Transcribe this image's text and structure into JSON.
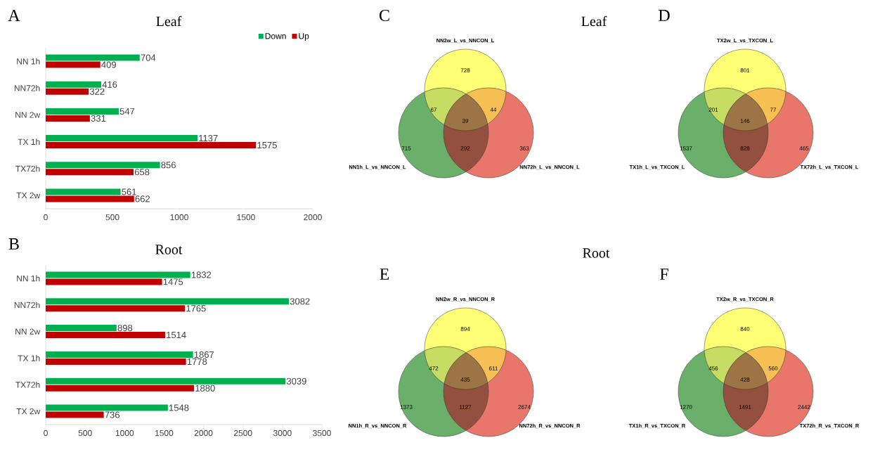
{
  "chart_data": [
    {
      "type": "bar",
      "title": "Leaf",
      "annotations": [
        "A"
      ],
      "orientation": "horizontal",
      "categories": [
        "NN 1h",
        "NN72h",
        "NN 2w",
        "TX  1h",
        "TX72h",
        "TX  2w"
      ],
      "series": [
        {
          "name": "Down",
          "color": "#00b050",
          "values": [
            704,
            416,
            547,
            1137,
            856,
            561
          ]
        },
        {
          "name": "Up",
          "color": "#c00000",
          "values": [
            409,
            322,
            331,
            1575,
            658,
            662
          ]
        }
      ],
      "xlim": [
        0,
        2000
      ],
      "xticks": [
        0,
        500,
        1000,
        1500,
        2000
      ],
      "data_labels": true,
      "legend": "top right"
    },
    {
      "type": "bar",
      "title": "Root",
      "annotations": [
        "B"
      ],
      "orientation": "horizontal",
      "categories": [
        "NN 1h",
        "NN72h",
        "NN 2w",
        "TX 1h",
        "TX72h",
        "TX 2w"
      ],
      "series": [
        {
          "color": "#00b050",
          "values": [
            1832,
            3082,
            898,
            1867,
            3039,
            1548
          ]
        },
        {
          "color": "#c00000",
          "values": [
            1475,
            1765,
            1514,
            1778,
            1880,
            736
          ]
        }
      ],
      "xlim": [
        0,
        3500
      ],
      "xticks": [
        0,
        500,
        1000,
        1500,
        2000,
        2500,
        3000,
        3500
      ],
      "data_labels": true
    },
    {
      "type": "other",
      "title": "Leaf",
      "annotations": [
        "C",
        "NN2w_L_vs_NNCON_L",
        "NN1h_L_vs_NNCON_L",
        "NN72h_L_vs_NNCON_L",
        "728",
        "715",
        "363",
        "67",
        "44",
        "39",
        "292"
      ],
      "colors": [
        "#ffff75",
        "#6ab06a",
        "#e8766a",
        "#c6dc63",
        "#f6c055",
        "#9c7445",
        "#94503e"
      ]
    },
    {
      "type": "other",
      "annotations": [
        "D",
        "TX2w_L_vs_TXCON_L",
        "TX1h_L_vs_TXCON_L",
        "TX72h_L_vs_TXCON_L",
        "801",
        "1537",
        "465",
        "201",
        "77",
        "146",
        "828"
      ],
      "colors": [
        "#ffff75",
        "#6ab06a",
        "#e8766a",
        "#c6dc63",
        "#f6c055",
        "#9c7445",
        "#94503e"
      ]
    },
    {
      "type": "other",
      "title": "Root",
      "annotations": [
        "E",
        "NN2w_R_vs_NNCON_R",
        "NN1h_R_vs_NNCON_R",
        "NN72h_R_vs_NNCON_R",
        "894",
        "1373",
        "2674",
        "472",
        "611",
        "435",
        "1127"
      ],
      "colors": [
        "#ffff75",
        "#6ab06a",
        "#e8766a",
        "#c6dc63",
        "#f6c055",
        "#9c7445",
        "#94503e"
      ]
    },
    {
      "type": "other",
      "annotations": [
        "F",
        "TX2w_R_vs_TXCON_R",
        "TX1h_R_vs_TXCON_R",
        "TX72h_R_vs_TXCON_R",
        "840",
        "1270",
        "2442",
        "456",
        "560",
        "428",
        "1491"
      ],
      "colors": [
        "#ffff75",
        "#6ab06a",
        "#e8766a",
        "#c6dc63",
        "#f6c055",
        "#9c7445",
        "#94503e"
      ]
    }
  ]
}
